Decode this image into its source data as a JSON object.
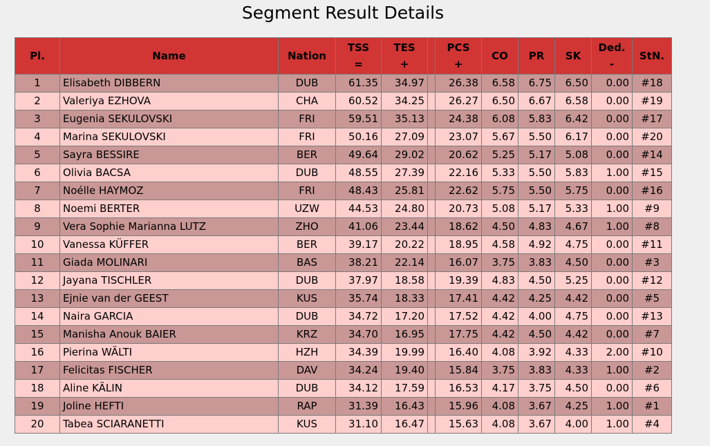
{
  "page": {
    "title": "Segment Result Details"
  },
  "table": {
    "headers": {
      "pl": "Pl.",
      "name": "Name",
      "nation": "Nation",
      "tss": "TSS",
      "tss_op": "=",
      "tes": "TES",
      "tes_op": "+",
      "pcs": "PCS",
      "pcs_op": "+",
      "co": "CO",
      "pr": "PR",
      "sk": "SK",
      "ded": "Ded.",
      "ded_op": "-",
      "stn": "StN."
    },
    "rows": [
      {
        "pl": "1",
        "name": "Elisabeth DIBBERN",
        "nation": "DUB",
        "tss": "61.35",
        "tes": "34.97",
        "pcs": "26.38",
        "co": "6.58",
        "pr": "6.75",
        "sk": "6.50",
        "ded": "0.00",
        "stn": "#18"
      },
      {
        "pl": "2",
        "name": "Valeriya EZHOVA",
        "nation": "CHA",
        "tss": "60.52",
        "tes": "34.25",
        "pcs": "26.27",
        "co": "6.50",
        "pr": "6.67",
        "sk": "6.58",
        "ded": "0.00",
        "stn": "#19"
      },
      {
        "pl": "3",
        "name": "Eugenia SEKULOVSKI",
        "nation": "FRI",
        "tss": "59.51",
        "tes": "35.13",
        "pcs": "24.38",
        "co": "6.08",
        "pr": "5.83",
        "sk": "6.42",
        "ded": "0.00",
        "stn": "#17"
      },
      {
        "pl": "4",
        "name": "Marina SEKULOVSKI",
        "nation": "FRI",
        "tss": "50.16",
        "tes": "27.09",
        "pcs": "23.07",
        "co": "5.67",
        "pr": "5.50",
        "sk": "6.17",
        "ded": "0.00",
        "stn": "#20"
      },
      {
        "pl": "5",
        "name": "Sayra BESSIRE",
        "nation": "BER",
        "tss": "49.64",
        "tes": "29.02",
        "pcs": "20.62",
        "co": "5.25",
        "pr": "5.17",
        "sk": "5.08",
        "ded": "0.00",
        "stn": "#14"
      },
      {
        "pl": "6",
        "name": "Olivia BACSA",
        "nation": "DUB",
        "tss": "48.55",
        "tes": "27.39",
        "pcs": "22.16",
        "co": "5.33",
        "pr": "5.50",
        "sk": "5.83",
        "ded": "1.00",
        "stn": "#15"
      },
      {
        "pl": "7",
        "name": "Noélle HAYMOZ",
        "nation": "FRI",
        "tss": "48.43",
        "tes": "25.81",
        "pcs": "22.62",
        "co": "5.75",
        "pr": "5.50",
        "sk": "5.75",
        "ded": "0.00",
        "stn": "#16"
      },
      {
        "pl": "8",
        "name": "Noemi BERTER",
        "nation": "UZW",
        "tss": "44.53",
        "tes": "24.80",
        "pcs": "20.73",
        "co": "5.08",
        "pr": "5.17",
        "sk": "5.33",
        "ded": "1.00",
        "stn": "#9"
      },
      {
        "pl": "9",
        "name": "Vera Sophie Marianna LUTZ",
        "nation": "ZHO",
        "tss": "41.06",
        "tes": "23.44",
        "pcs": "18.62",
        "co": "4.50",
        "pr": "4.83",
        "sk": "4.67",
        "ded": "1.00",
        "stn": "#8"
      },
      {
        "pl": "10",
        "name": "Vanessa KÜFFER",
        "nation": "BER",
        "tss": "39.17",
        "tes": "20.22",
        "pcs": "18.95",
        "co": "4.58",
        "pr": "4.92",
        "sk": "4.75",
        "ded": "0.00",
        "stn": "#11"
      },
      {
        "pl": "11",
        "name": "Giada MOLINARI",
        "nation": "BAS",
        "tss": "38.21",
        "tes": "22.14",
        "pcs": "16.07",
        "co": "3.75",
        "pr": "3.83",
        "sk": "4.50",
        "ded": "0.00",
        "stn": "#3"
      },
      {
        "pl": "12",
        "name": "Jayana TISCHLER",
        "nation": "DUB",
        "tss": "37.97",
        "tes": "18.58",
        "pcs": "19.39",
        "co": "4.83",
        "pr": "4.50",
        "sk": "5.25",
        "ded": "0.00",
        "stn": "#12"
      },
      {
        "pl": "13",
        "name": "Ejnie van der GEEST",
        "nation": "KUS",
        "tss": "35.74",
        "tes": "18.33",
        "pcs": "17.41",
        "co": "4.42",
        "pr": "4.25",
        "sk": "4.42",
        "ded": "0.00",
        "stn": "#5"
      },
      {
        "pl": "14",
        "name": "Naira GARCIA",
        "nation": "DUB",
        "tss": "34.72",
        "tes": "17.20",
        "pcs": "17.52",
        "co": "4.42",
        "pr": "4.00",
        "sk": "4.75",
        "ded": "0.00",
        "stn": "#13"
      },
      {
        "pl": "15",
        "name": "Manisha Anouk BAIER",
        "nation": "KRZ",
        "tss": "34.70",
        "tes": "16.95",
        "pcs": "17.75",
        "co": "4.42",
        "pr": "4.50",
        "sk": "4.42",
        "ded": "0.00",
        "stn": "#7"
      },
      {
        "pl": "16",
        "name": "Pierina WÄLTI",
        "nation": "HZH",
        "tss": "34.39",
        "tes": "19.99",
        "pcs": "16.40",
        "co": "4.08",
        "pr": "3.92",
        "sk": "4.33",
        "ded": "2.00",
        "stn": "#10"
      },
      {
        "pl": "17",
        "name": "Felicitas FISCHER",
        "nation": "DAV",
        "tss": "34.24",
        "tes": "19.40",
        "pcs": "15.84",
        "co": "3.75",
        "pr": "3.83",
        "sk": "4.33",
        "ded": "1.00",
        "stn": "#2"
      },
      {
        "pl": "18",
        "name": "Aline KÄLIN",
        "nation": "DUB",
        "tss": "34.12",
        "tes": "17.59",
        "pcs": "16.53",
        "co": "4.17",
        "pr": "3.75",
        "sk": "4.50",
        "ded": "0.00",
        "stn": "#6"
      },
      {
        "pl": "19",
        "name": "Joline HEFTI",
        "nation": "RAP",
        "tss": "31.39",
        "tes": "16.43",
        "pcs": "15.96",
        "co": "4.08",
        "pr": "3.67",
        "sk": "4.25",
        "ded": "1.00",
        "stn": "#1"
      },
      {
        "pl": "20",
        "name": "Tabea SCIARANETTI",
        "nation": "KUS",
        "tss": "31.10",
        "tes": "16.47",
        "pcs": "15.63",
        "co": "4.08",
        "pr": "3.67",
        "sk": "4.00",
        "ded": "1.00",
        "stn": "#4"
      }
    ]
  },
  "colors": {
    "header_bg": "#d13534",
    "row_odd_bg": "#c99896",
    "row_even_bg": "#ffcfcd",
    "border": "#7a7a7a",
    "page_bg": "#efefef"
  }
}
